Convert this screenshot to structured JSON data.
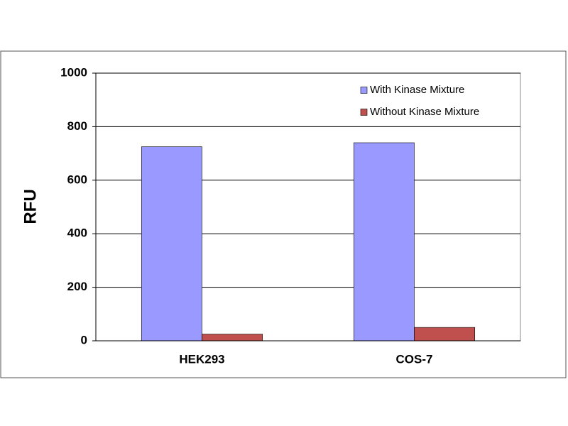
{
  "chart_data": {
    "type": "bar",
    "y_label": "RFU",
    "categories": [
      "HEK293",
      "COS-7"
    ],
    "series": [
      {
        "name": "With Kinase Mixture",
        "color": "#9999ff",
        "values": [
          725,
          740
        ]
      },
      {
        "name": "Without Kinase Mixture",
        "color": "#c0504d",
        "values": [
          25,
          50
        ]
      }
    ],
    "ylim": [
      0,
      1000
    ],
    "yticks": [
      0,
      200,
      400,
      600,
      800,
      1000
    ],
    "grid": true,
    "legend": "upper right"
  }
}
